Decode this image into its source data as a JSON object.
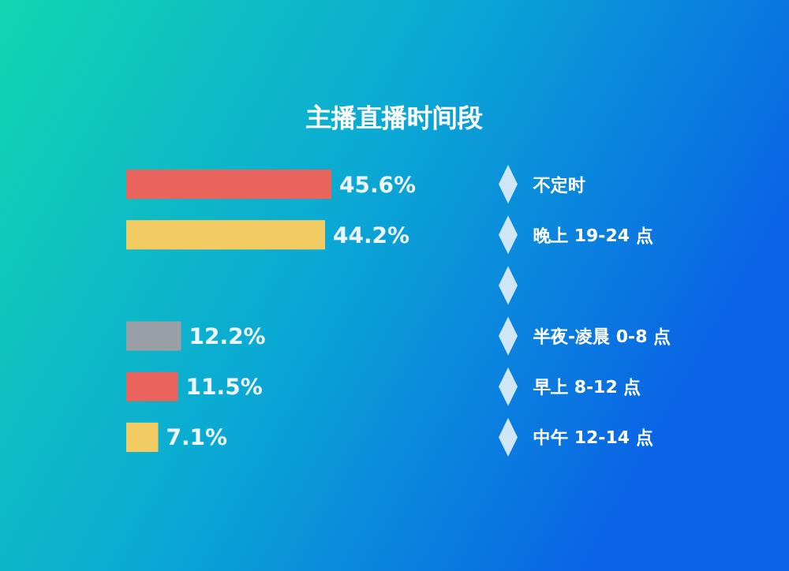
{
  "chart_data": {
    "type": "bar",
    "orientation": "horizontal",
    "title": "主播直播时间段",
    "categories": [
      "不定时",
      "晚上 19-24 点",
      null,
      "半夜-凌晨 0-8 点",
      "早上 8-12 点",
      "中午 12-14 点"
    ],
    "values": [
      45.6,
      44.2,
      null,
      12.2,
      11.5,
      7.1
    ],
    "value_labels": [
      "45.6%",
      "44.2%",
      null,
      "12.2%",
      "11.5%",
      "7.1%"
    ],
    "colors": [
      "#e8645c",
      "#f2cc62",
      "#2b3038",
      "#9a9fa6",
      "#e8645c",
      "#f2cc62"
    ],
    "tick_labels": false,
    "grid": false
  }
}
